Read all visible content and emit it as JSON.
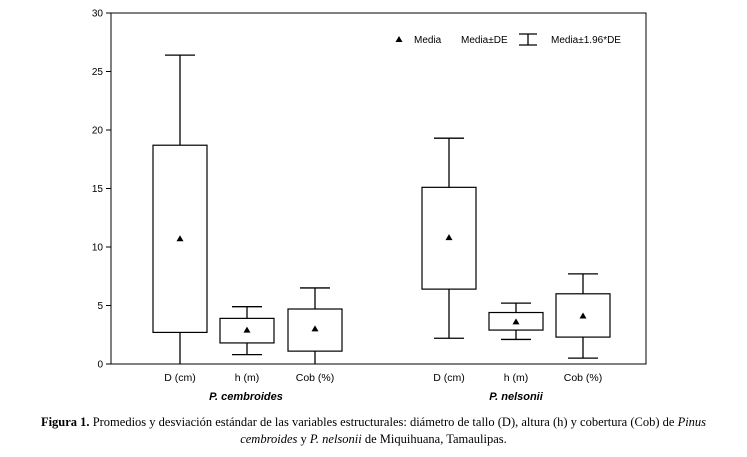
{
  "chart_data": {
    "type": "box",
    "y_axis": {
      "min": 0,
      "max": 30,
      "ticks": [
        "0",
        "5",
        "10",
        "15",
        "20",
        "25",
        "30"
      ]
    },
    "x_axis": {
      "categories": [
        "D (cm)",
        "h (m)",
        "Cob (%)",
        "D (cm)",
        "h (m)",
        "Cob (%)"
      ],
      "group_labels": [
        "P. cembroides",
        "P. nelsonii"
      ]
    },
    "legend": {
      "mean": "Media",
      "box": "Media±DE",
      "whisker": "Media±1.96*DE"
    },
    "series": [
      {
        "name": "P. cembroides",
        "boxes": [
          {
            "category": "D (cm)",
            "mean": 10.7,
            "box_low": 2.7,
            "box_high": 18.7,
            "whisker_low": 0.0,
            "whisker_high": 26.4
          },
          {
            "category": "h (m)",
            "mean": 2.9,
            "box_low": 1.8,
            "box_high": 3.9,
            "whisker_low": 0.8,
            "whisker_high": 4.9
          },
          {
            "category": "Cob (%)",
            "mean": 3.0,
            "box_low": 1.1,
            "box_high": 4.7,
            "whisker_low": 0.0,
            "whisker_high": 6.5
          }
        ]
      },
      {
        "name": "P. nelsonii",
        "boxes": [
          {
            "category": "D (cm)",
            "mean": 10.8,
            "box_low": 6.4,
            "box_high": 15.1,
            "whisker_low": 2.2,
            "whisker_high": 19.3
          },
          {
            "category": "h (m)",
            "mean": 3.6,
            "box_low": 2.9,
            "box_high": 4.4,
            "whisker_low": 2.1,
            "whisker_high": 5.2
          },
          {
            "category": "Cob (%)",
            "mean": 4.1,
            "box_low": 2.3,
            "box_high": 6.0,
            "whisker_low": 0.5,
            "whisker_high": 7.7
          }
        ]
      }
    ]
  },
  "caption": {
    "label": "Figura 1.",
    "text_1": " Promedios y desviación estándar de las variables estructurales: diámetro de tallo (D), altura (h) y cobertura (Cob) de ",
    "species_1_genus": "Pinus",
    "species_1_epithet": "cembroides",
    "text_2": " y ",
    "species_2": "P. nelsonii",
    "text_3": " de Miquihuana, Tamaulipas."
  }
}
